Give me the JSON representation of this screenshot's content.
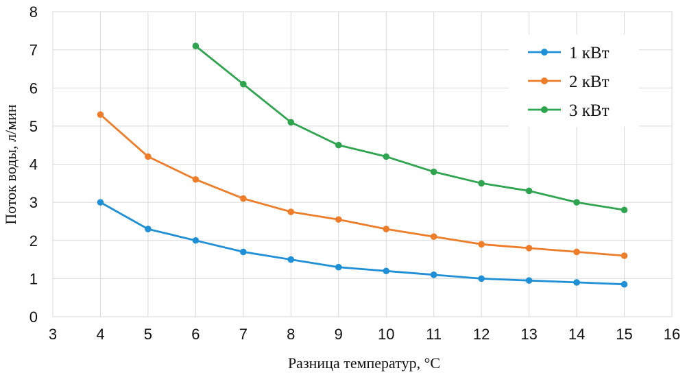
{
  "chart_data": {
    "type": "line",
    "xlabel": "Разница температур, °C",
    "ylabel": "Поток воды, л/мин",
    "xlim": [
      3,
      16
    ],
    "ylim": [
      0,
      8
    ],
    "x_ticks": [
      "3",
      "4",
      "5",
      "6",
      "7",
      "8",
      "9",
      "10",
      "11",
      "12",
      "13",
      "14",
      "15",
      "16"
    ],
    "y_ticks": [
      "0",
      "1",
      "2",
      "3",
      "4",
      "5",
      "6",
      "7",
      "8"
    ],
    "grid": true,
    "legend_position": "top-right",
    "series": [
      {
        "name": "1 кВт",
        "color": "#1f8fd6",
        "x": [
          4,
          5,
          6,
          7,
          8,
          9,
          10,
          11,
          12,
          13,
          14,
          15
        ],
        "values": [
          3.0,
          2.3,
          2.0,
          1.7,
          1.5,
          1.3,
          1.2,
          1.1,
          1.0,
          0.95,
          0.9,
          0.85
        ]
      },
      {
        "name": "2 кВт",
        "color": "#ee7d2a",
        "x": [
          4,
          5,
          6,
          7,
          8,
          9,
          10,
          11,
          12,
          13,
          14,
          15
        ],
        "values": [
          5.3,
          4.2,
          3.6,
          3.1,
          2.75,
          2.55,
          2.3,
          2.1,
          1.9,
          1.8,
          1.7,
          1.6
        ]
      },
      {
        "name": "3 кВт",
        "color": "#2ea44f",
        "x": [
          6,
          7,
          8,
          9,
          10,
          11,
          12,
          13,
          14,
          15
        ],
        "values": [
          7.1,
          6.1,
          5.1,
          4.5,
          4.2,
          3.8,
          3.5,
          3.3,
          3.0,
          2.8
        ]
      }
    ]
  }
}
